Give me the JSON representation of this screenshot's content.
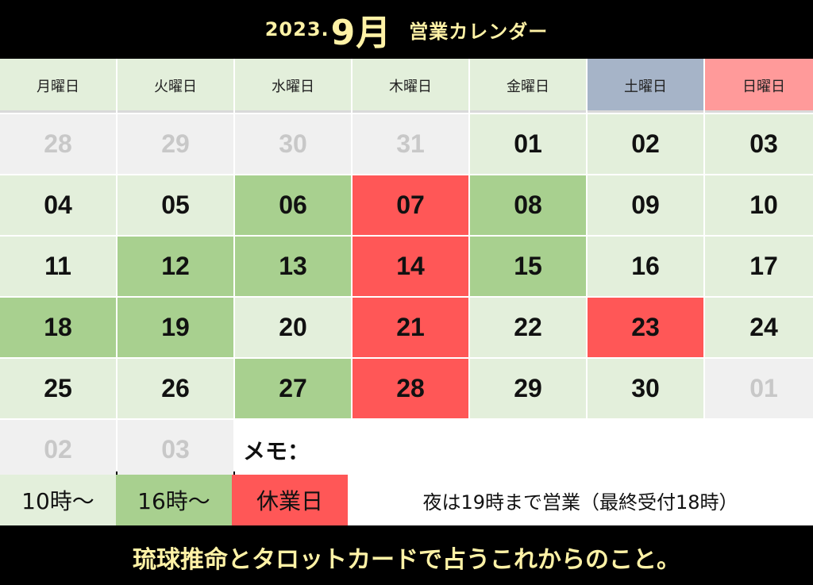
{
  "header": {
    "year": "2023.",
    "month": "9月",
    "title": "営業カレンダー"
  },
  "weekdays": [
    "月曜日",
    "火曜日",
    "水曜日",
    "木曜日",
    "金曜日",
    "土曜日",
    "日曜日"
  ],
  "weeks": [
    [
      {
        "day": "28",
        "type": "muted"
      },
      {
        "day": "29",
        "type": "muted"
      },
      {
        "day": "30",
        "type": "muted"
      },
      {
        "day": "31",
        "type": "muted"
      },
      {
        "day": "01",
        "type": "light"
      },
      {
        "day": "02",
        "type": "light"
      },
      {
        "day": "03",
        "type": "light"
      }
    ],
    [
      {
        "day": "04",
        "type": "light"
      },
      {
        "day": "05",
        "type": "light"
      },
      {
        "day": "06",
        "type": "green"
      },
      {
        "day": "07",
        "type": "red"
      },
      {
        "day": "08",
        "type": "green"
      },
      {
        "day": "09",
        "type": "light"
      },
      {
        "day": "10",
        "type": "light"
      }
    ],
    [
      {
        "day": "11",
        "type": "light"
      },
      {
        "day": "12",
        "type": "green"
      },
      {
        "day": "13",
        "type": "green"
      },
      {
        "day": "14",
        "type": "red"
      },
      {
        "day": "15",
        "type": "green"
      },
      {
        "day": "16",
        "type": "light"
      },
      {
        "day": "17",
        "type": "light"
      }
    ],
    [
      {
        "day": "18",
        "type": "green"
      },
      {
        "day": "19",
        "type": "green"
      },
      {
        "day": "20",
        "type": "light"
      },
      {
        "day": "21",
        "type": "red"
      },
      {
        "day": "22",
        "type": "light"
      },
      {
        "day": "23",
        "type": "red"
      },
      {
        "day": "24",
        "type": "light"
      }
    ],
    [
      {
        "day": "25",
        "type": "light"
      },
      {
        "day": "26",
        "type": "light"
      },
      {
        "day": "27",
        "type": "green"
      },
      {
        "day": "28",
        "type": "red"
      },
      {
        "day": "29",
        "type": "light"
      },
      {
        "day": "30",
        "type": "light"
      },
      {
        "day": "01",
        "type": "muted"
      }
    ],
    [
      {
        "day": "02",
        "type": "muted"
      },
      {
        "day": "03",
        "type": "muted"
      }
    ]
  ],
  "memo_label": "メモ：",
  "legend": {
    "item1": "10時〜",
    "item2": "16時〜",
    "item3": "休業日",
    "note": "夜は19時まで営業（最終受付18時）"
  },
  "footer": "琉球推命とタロットカードで占うこれからのこと。",
  "colors": {
    "light": "#e3efdb",
    "green": "#a8d08f",
    "red": "#ff5757",
    "saturday": "#a6b4c8",
    "sunday": "#ff9a9a",
    "muted_text": "#c8c8c8",
    "header_text": "#fff2a6"
  }
}
